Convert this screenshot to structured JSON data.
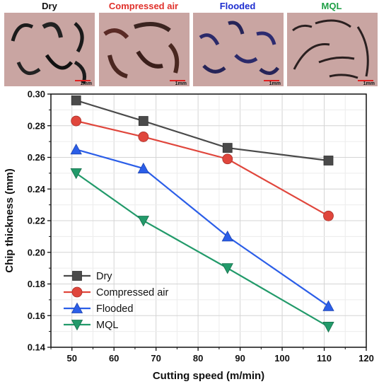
{
  "photos": [
    {
      "label": "Dry",
      "color": "#111111",
      "scale_label": "1mm"
    },
    {
      "label": "Compressed air",
      "color": "#e0302a",
      "scale_label": "1mm"
    },
    {
      "label": "Flooded",
      "color": "#1c2ccf",
      "scale_label": "1mm"
    },
    {
      "label": "MQL",
      "color": "#1fa046",
      "scale_label": "1mm"
    }
  ],
  "chart_data": {
    "type": "line",
    "xlabel": "Cutting speed (m/min)",
    "ylabel": "Chip thickness (mm)",
    "xlim": [
      45,
      120
    ],
    "ylim": [
      0.14,
      0.3
    ],
    "xticks": [
      50,
      60,
      70,
      80,
      90,
      100,
      110,
      120
    ],
    "yticks": [
      0.14,
      0.16,
      0.18,
      0.2,
      0.22,
      0.24,
      0.26,
      0.28,
      0.3
    ],
    "grid": true,
    "legend_position": "bottom-left",
    "x": [
      51,
      67,
      87,
      111
    ],
    "series": [
      {
        "name": "Dry",
        "values": [
          0.296,
          0.283,
          0.266,
          0.258
        ],
        "color": "#4a4a4a",
        "marker": "square"
      },
      {
        "name": "Compressed air",
        "values": [
          0.283,
          0.273,
          0.259,
          0.223
        ],
        "color": "#e0463c",
        "marker": "circle"
      },
      {
        "name": "Flooded",
        "values": [
          0.265,
          0.253,
          0.21,
          0.166
        ],
        "color": "#2b5ee8",
        "marker": "triangle-up"
      },
      {
        "name": "MQL",
        "values": [
          0.25,
          0.22,
          0.19,
          0.153
        ],
        "color": "#229a6a",
        "marker": "triangle-down"
      }
    ]
  }
}
